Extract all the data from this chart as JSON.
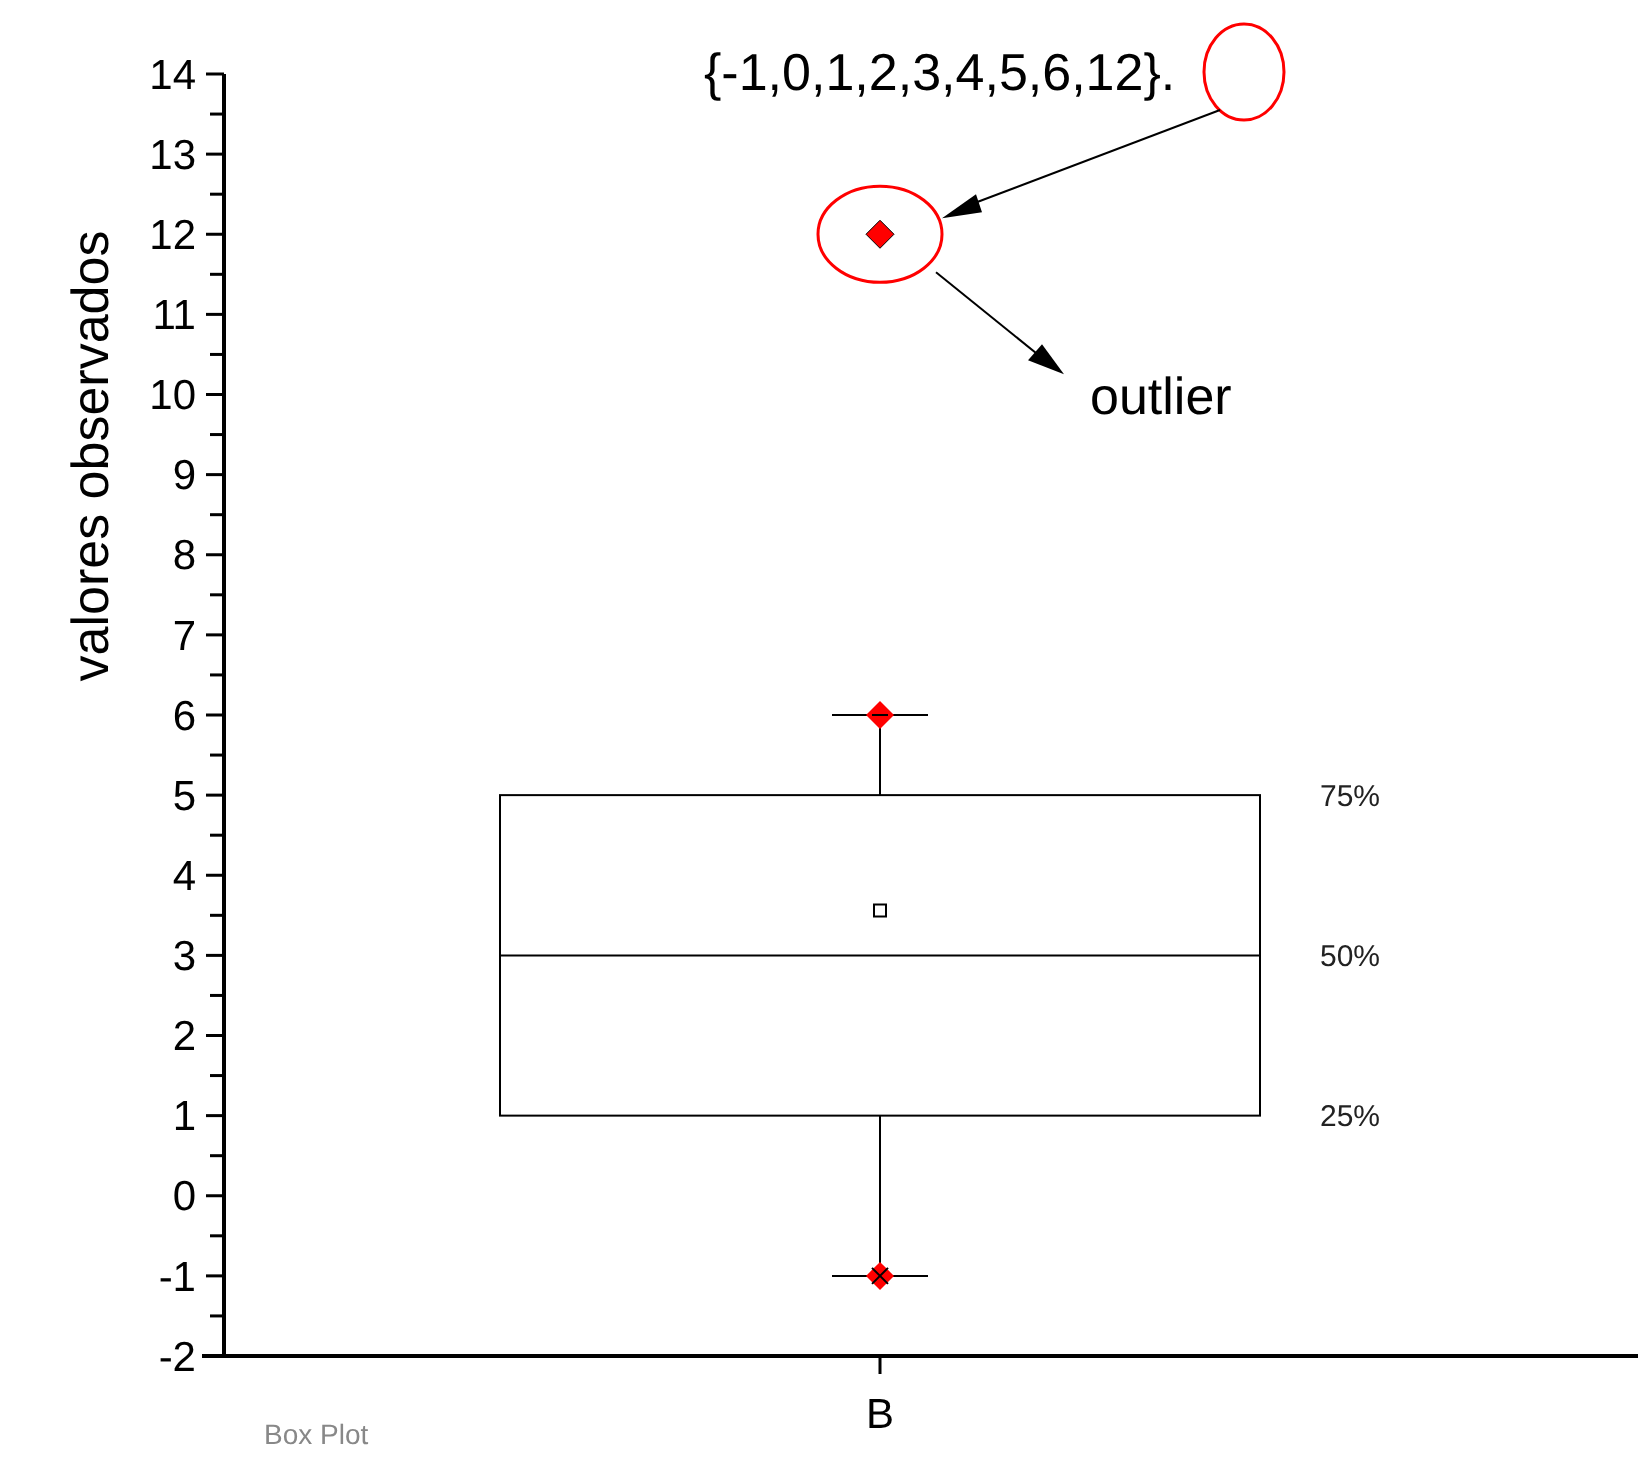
{
  "chart_data": {
    "type": "box",
    "title": "{-1,0,1,2,3,4,5,6,12}.",
    "ylabel": "valores observados",
    "categories": [
      "B"
    ],
    "boxes": [
      {
        "low": -1,
        "q1": 1,
        "median": 3,
        "q3": 5,
        "high": 6,
        "mean": 3.56,
        "outliers": [
          12
        ]
      }
    ],
    "ylim": [
      -2,
      14
    ],
    "yticks": [
      -2,
      {
        "value": -1.5,
        "label": null
      },
      -1,
      {
        "value": -0.5,
        "label": null
      },
      0,
      {
        "value": 0.5,
        "label": null
      },
      1,
      {
        "value": 1.5,
        "label": null
      },
      2,
      {
        "value": 2.5,
        "label": null
      },
      3,
      {
        "value": 3.5,
        "label": null
      },
      4,
      {
        "value": 4.5,
        "label": null
      },
      5,
      {
        "value": 5.5,
        "label": null
      },
      6,
      {
        "value": 6.5,
        "label": null
      },
      7,
      {
        "value": 7.5,
        "label": null
      },
      8,
      {
        "value": 8.5,
        "label": null
      },
      9,
      {
        "value": 9.5,
        "label": null
      },
      10,
      {
        "value": 10.5,
        "label": null
      },
      11,
      {
        "value": 11.5,
        "label": null
      },
      12,
      {
        "value": 12.5,
        "label": null
      },
      13,
      {
        "value": 13.5,
        "label": null
      },
      14
    ],
    "annotations": [
      "outlier",
      "75%",
      "50%",
      "25%",
      "Box Plot"
    ],
    "grid": false
  }
}
